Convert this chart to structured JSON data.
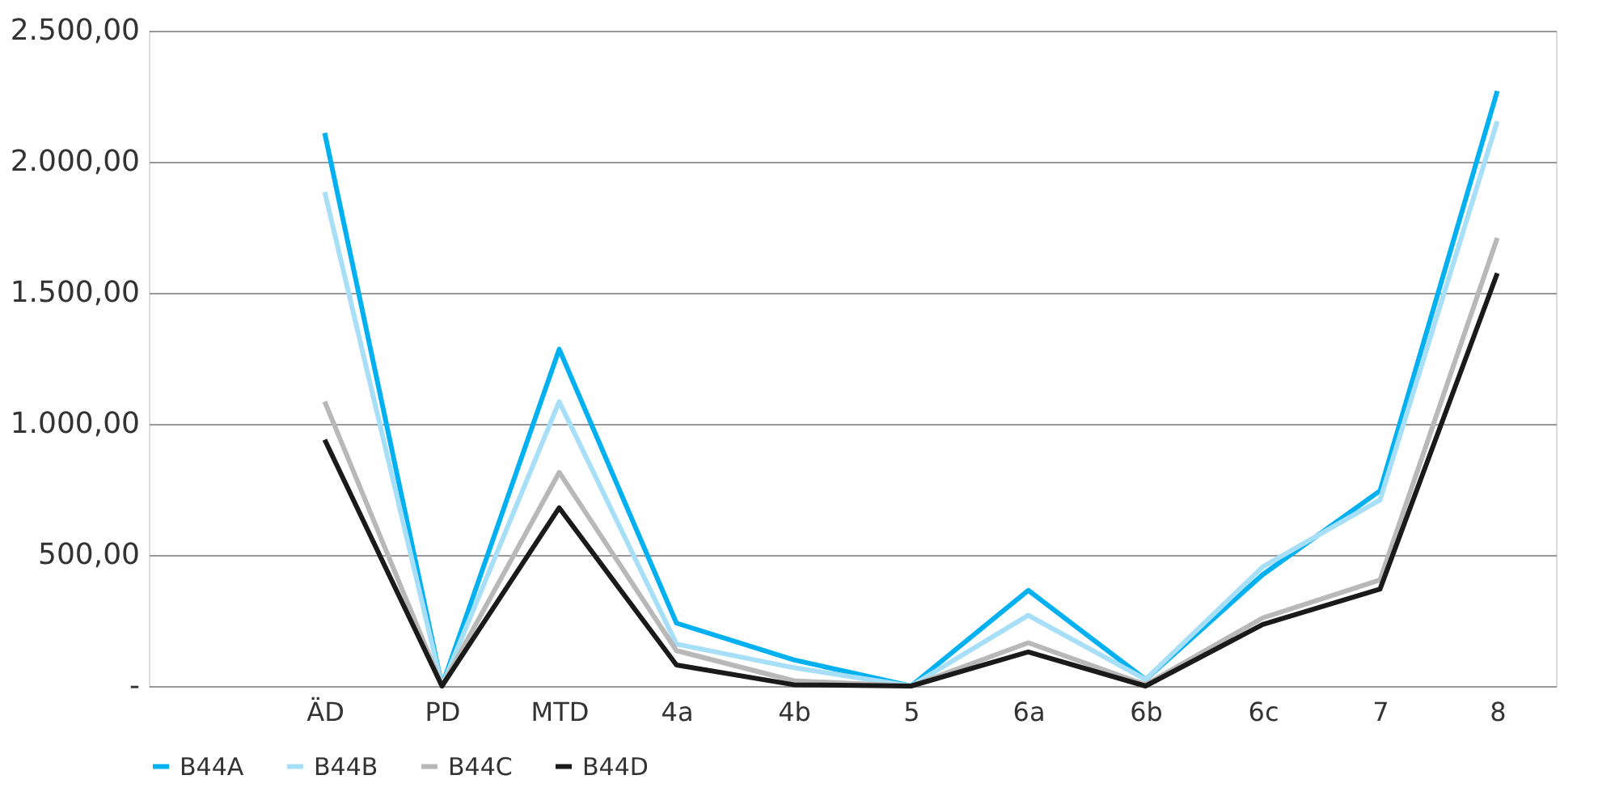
{
  "chart_data": {
    "type": "line",
    "categories": [
      null,
      "ÄD",
      "PD",
      "MTD",
      "4a",
      "4b",
      "5",
      "6a",
      "6b",
      "6c",
      "7",
      "8"
    ],
    "ylim": [
      0,
      2500
    ],
    "yticks": [
      {
        "value": 0,
        "label": "-"
      },
      {
        "value": 500,
        "label": "500,00"
      },
      {
        "value": 1000,
        "label": "1.000,00"
      },
      {
        "value": 1500,
        "label": "1.500,00"
      },
      {
        "value": 2000,
        "label": "2.000,00"
      },
      {
        "value": 2500,
        "label": "2.500,00"
      }
    ],
    "grid": "y",
    "legend": "bottom",
    "marker": "none",
    "line_style": "solid",
    "series": [
      {
        "name": "B44A",
        "color": "#00b0f0",
        "values": [
          null,
          2110,
          0,
          1285,
          240,
          100,
          0,
          365,
          25,
          425,
          745,
          2270
        ]
      },
      {
        "name": "B44B",
        "color": "#a6dff7",
        "values": [
          null,
          1885,
          0,
          1085,
          160,
          70,
          0,
          270,
          25,
          455,
          710,
          2155
        ]
      },
      {
        "name": "B44C",
        "color": "#b8b8b8",
        "values": [
          null,
          1085,
          0,
          815,
          135,
          20,
          0,
          165,
          5,
          260,
          405,
          1710
        ]
      },
      {
        "name": "B44D",
        "color": "#1a1a1a",
        "values": [
          null,
          940,
          0,
          680,
          80,
          5,
          0,
          130,
          0,
          235,
          370,
          1575
        ]
      }
    ]
  }
}
